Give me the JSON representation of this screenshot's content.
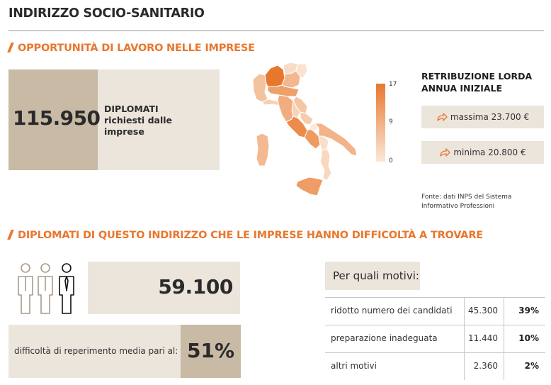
{
  "header": {
    "title": "INDIRIZZO SOCIO-SANITARIO"
  },
  "section1": {
    "heading": "OPPORTUNITÀ DI LAVORO NELLE IMPRESE",
    "diplomati_value": "115.950",
    "diplomati_label": [
      "DIPLOMATI",
      "richiesti dalle",
      "imprese"
    ],
    "map_legend": {
      "max": "17",
      "mid": "9",
      "min": "0"
    },
    "colors": {
      "accent": "#e8772e",
      "box_light": "#ebe5dc",
      "box_dark": "#c9baa6"
    },
    "retribuzione": {
      "title_line1": "RETRIBUZIONE LORDA",
      "title_line2": "ANNUA INIZIALE",
      "max": "massima 23.700 €",
      "min": "minima 20.800 €",
      "icon": "share-arrow-icon"
    },
    "source": [
      "Fonte: dati INPS del Sistema",
      "Informativo Professioni"
    ]
  },
  "section2": {
    "heading": "DIPLOMATI DI QUESTO INDIRIZZO CHE LE IMPRESE HANNO DIFFICOLTÀ A TROVARE",
    "count_value": "59.100",
    "media_label": "difficoltà di reperimento media pari al:",
    "media_value": "51%",
    "motivi_header": "Per quali motivi:",
    "reasons": [
      {
        "label": "ridotto numero dei candidati",
        "count": "45.300",
        "pct": "39%"
      },
      {
        "label": "preparazione inadeguata",
        "count": "11.440",
        "pct": "10%"
      },
      {
        "label": "altri motivi",
        "count": "2.360",
        "pct": "2%"
      }
    ],
    "icon": "people-icon"
  }
}
